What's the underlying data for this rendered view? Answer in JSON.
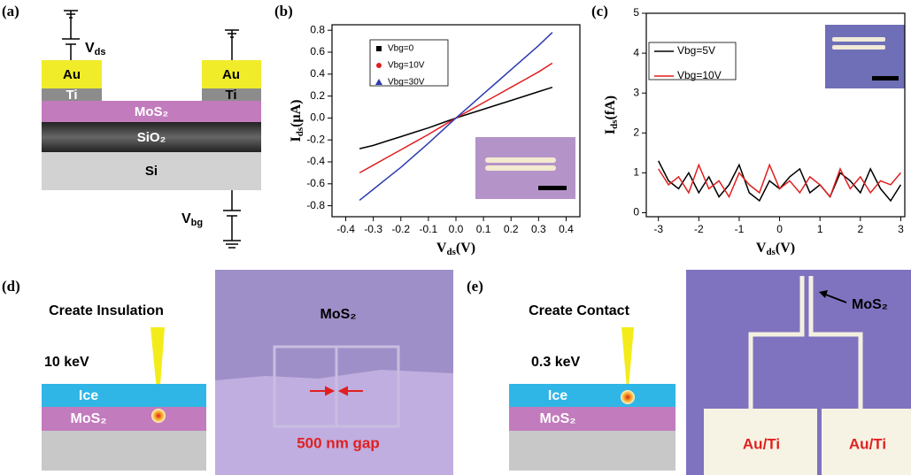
{
  "figure": {
    "labels": [
      "(a)",
      "(b)",
      "(c)",
      "(d)",
      "(e)"
    ],
    "a": {
      "au": [
        "Au",
        "Au"
      ],
      "ti": [
        "Ti",
        "Ti"
      ],
      "mos2": "MoS₂",
      "sio2": "SiO₂",
      "si": "Si",
      "vds": [
        "V",
        "ds"
      ],
      "vbg": [
        "V",
        "bg"
      ]
    },
    "d": {
      "title": "Create Insulation",
      "energy": "10 keV",
      "ice": "Ice",
      "mos2": "MoS₂",
      "image_label": "MoS₂",
      "gap": "500 nm gap"
    },
    "e": {
      "title": "Create Contact",
      "energy": "0.3 keV",
      "ice": "Ice",
      "mos2": "MoS₂",
      "image_label": "MoS₂",
      "pads": [
        "Au/Ti",
        "Au/Ti"
      ]
    }
  },
  "chart_data": [
    {
      "type": "line",
      "x_label": [
        "V",
        "ds",
        "(V)"
      ],
      "y_label": [
        "I",
        "ds",
        "(μA)"
      ],
      "x": [
        -0.35,
        -0.3,
        -0.25,
        -0.2,
        -0.15,
        -0.1,
        -0.05,
        0,
        0.05,
        0.1,
        0.15,
        0.2,
        0.25,
        0.3,
        0.35
      ],
      "series": [
        {
          "name": "Vbg=0",
          "color": "#000000",
          "marker": "square",
          "values": [
            -0.28,
            -0.25,
            -0.21,
            -0.17,
            -0.13,
            -0.09,
            -0.045,
            0,
            0.04,
            0.08,
            0.12,
            0.16,
            0.2,
            0.24,
            0.28
          ]
        },
        {
          "name": "Vbg=10V",
          "color": "#e01f1f",
          "marker": "circle",
          "values": [
            -0.5,
            -0.43,
            -0.36,
            -0.29,
            -0.22,
            -0.15,
            -0.075,
            0,
            0.07,
            0.14,
            0.21,
            0.28,
            0.35,
            0.42,
            0.5
          ]
        },
        {
          "name": "Vbg=30V",
          "color": "#2b3bb0",
          "marker": "triangle",
          "values": [
            -0.75,
            -0.65,
            -0.55,
            -0.45,
            -0.34,
            -0.23,
            -0.115,
            0,
            0.11,
            0.22,
            0.33,
            0.44,
            0.55,
            0.66,
            0.78
          ]
        }
      ],
      "xlim": [
        -0.45,
        0.45
      ],
      "ylim": [
        -0.9,
        0.85
      ],
      "xticks": [
        -0.4,
        -0.3,
        -0.2,
        -0.1,
        {
          "value": 0,
          "label": "0.0"
        },
        0.1,
        0.2,
        0.3,
        0.4
      ],
      "yticks": [
        -0.8,
        -0.6,
        -0.4,
        -0.2,
        {
          "value": 0,
          "label": "0.0"
        },
        0.2,
        0.4,
        0.6,
        0.8
      ]
    },
    {
      "type": "line",
      "x_label": [
        "V",
        "ds",
        "(V)"
      ],
      "y_label": [
        "I",
        "ds",
        "(fA)"
      ],
      "x": [
        -3,
        -2.75,
        -2.5,
        -2.25,
        -2,
        -1.75,
        -1.5,
        -1.25,
        -1,
        -0.75,
        -0.5,
        -0.25,
        0,
        0.25,
        0.5,
        0.75,
        1,
        1.25,
        1.5,
        1.75,
        2,
        2.25,
        2.5,
        2.75,
        3
      ],
      "series": [
        {
          "name": "Vbg=5V",
          "color": "#000000",
          "values": [
            1.3,
            0.8,
            0.6,
            1.0,
            0.5,
            0.9,
            0.4,
            0.7,
            1.2,
            0.5,
            0.3,
            0.8,
            0.6,
            0.9,
            1.1,
            0.5,
            0.7,
            0.4,
            1.0,
            0.8,
            0.5,
            1.1,
            0.6,
            0.3,
            0.7
          ]
        },
        {
          "name": "Vbg=10V",
          "color": "#e01f1f",
          "values": [
            1.1,
            0.7,
            0.9,
            0.5,
            1.2,
            0.6,
            0.8,
            0.4,
            1.0,
            0.7,
            0.5,
            1.2,
            0.6,
            0.8,
            0.5,
            0.9,
            0.7,
            0.4,
            1.1,
            0.6,
            0.9,
            0.5,
            0.8,
            0.7,
            1.0
          ]
        }
      ],
      "xlim": [
        -3.3,
        3.1
      ],
      "ylim": [
        -0.1,
        5
      ],
      "xticks": [
        -3,
        -2,
        -1,
        0,
        1,
        2,
        3
      ],
      "yticks": [
        0,
        1,
        2,
        3,
        4,
        5
      ]
    }
  ]
}
